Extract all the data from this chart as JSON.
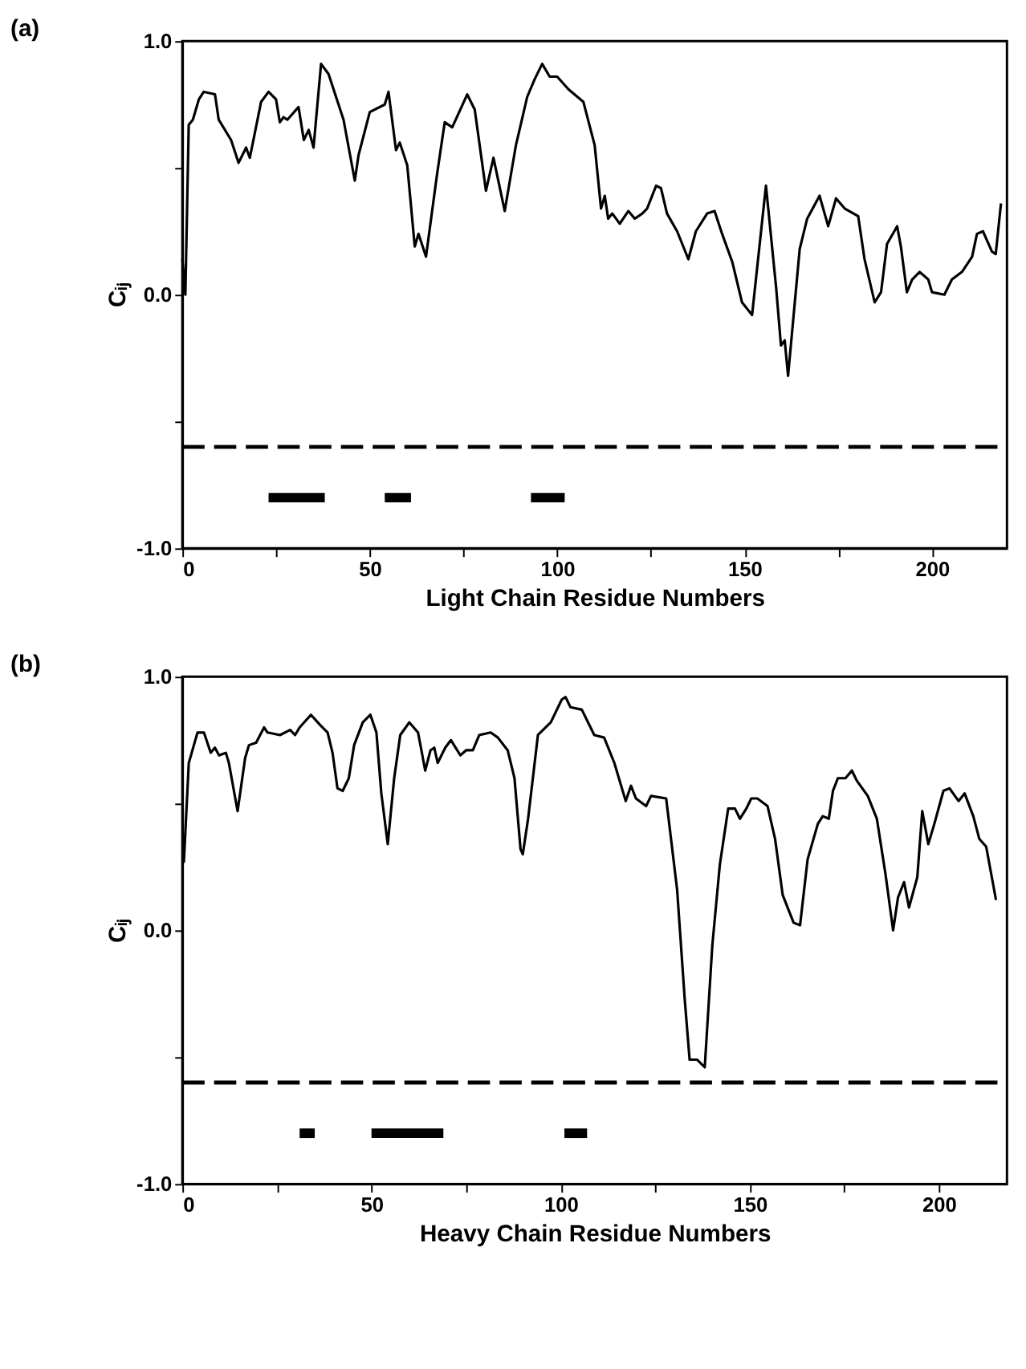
{
  "chart_data": [
    {
      "type": "line",
      "title": "(a)",
      "xlabel": "Light Chain Residue Numbers",
      "ylabel": "Cᵢⱼ",
      "xlim": [
        0,
        220
      ],
      "ylim": [
        -1.0,
        1.0
      ],
      "xticks": [
        0,
        {
          "value": 25,
          "label": null
        },
        50,
        {
          "value": 75,
          "label": null
        },
        100,
        {
          "value": 125,
          "label": null
        },
        150,
        {
          "value": 175,
          "label": null
        },
        200
      ],
      "yticks": [
        {
          "value": -1,
          "label": "-1.0"
        },
        {
          "value": -0.5,
          "label": null
        },
        {
          "value": 0,
          "label": "0.0"
        },
        {
          "value": 0.5,
          "label": null
        },
        {
          "value": 1,
          "label": "1.0"
        }
      ],
      "grid": false,
      "marker": "none",
      "line_style": "solid",
      "ref_lines": [
        {
          "axis": "y",
          "value": -0.6,
          "label": null,
          "color": "#000000",
          "line_style": "dashed"
        }
      ],
      "series": [
        {
          "color": "#000000",
          "x": [
            0,
            0.8,
            1.7,
            2.8,
            4.4,
            5.7,
            8.7,
            9.7,
            13,
            15,
            17,
            18,
            21,
            23,
            25,
            26,
            27,
            28,
            31,
            32.4,
            33.7,
            35,
            37,
            39,
            43,
            46,
            47,
            50,
            54,
            55,
            57,
            58,
            60,
            62,
            63,
            65,
            68,
            70,
            72,
            76,
            78,
            81,
            83,
            86,
            89,
            92,
            94,
            96,
            98,
            100,
            103,
            107,
            110,
            111.7,
            112.7,
            113.6,
            114.7,
            116.7,
            119,
            120.7,
            122.7,
            124,
            126.4,
            127.7,
            129.3,
            132,
            135,
            137,
            140,
            142,
            144,
            146.7,
            149.3,
            152,
            155.7,
            158.4,
            159.7,
            160.7,
            161.6,
            164.7,
            166.7,
            170,
            172.3,
            174.4,
            176.7,
            180.3,
            182,
            184.7,
            186.4,
            188,
            190.7,
            191.7,
            193.3,
            194.7,
            196.7,
            199,
            200,
            203.3,
            205.3,
            208,
            210.7,
            212,
            213.6,
            216,
            217,
            218.4
          ],
          "values": [
            0.14,
            0.0,
            0.67,
            0.69,
            0.77,
            0.8,
            0.79,
            0.69,
            0.61,
            0.52,
            0.58,
            0.54,
            0.76,
            0.8,
            0.77,
            0.68,
            0.7,
            0.69,
            0.74,
            0.61,
            0.65,
            0.58,
            0.91,
            0.87,
            0.69,
            0.45,
            0.55,
            0.72,
            0.75,
            0.8,
            0.57,
            0.6,
            0.51,
            0.19,
            0.24,
            0.15,
            0.48,
            0.68,
            0.66,
            0.79,
            0.73,
            0.41,
            0.54,
            0.33,
            0.59,
            0.78,
            0.85,
            0.91,
            0.86,
            0.86,
            0.81,
            0.76,
            0.59,
            0.34,
            0.39,
            0.3,
            0.32,
            0.28,
            0.33,
            0.3,
            0.32,
            0.34,
            0.43,
            0.42,
            0.32,
            0.25,
            0.14,
            0.25,
            0.32,
            0.33,
            0.24,
            0.13,
            -0.03,
            -0.08,
            0.43,
            0.03,
            -0.2,
            -0.18,
            -0.32,
            0.18,
            0.3,
            0.39,
            0.27,
            0.38,
            0.34,
            0.31,
            0.14,
            -0.03,
            0.01,
            0.2,
            0.27,
            0.19,
            0.01,
            0.06,
            0.09,
            0.06,
            0.01,
            0.0,
            0.06,
            0.09,
            0.15,
            0.24,
            0.25,
            0.17,
            0.16,
            0.36
          ]
        },
        {
          "type": "line",
          "color": "#000000",
          "x": [
            23,
            38,
            null,
            54,
            61,
            null,
            93,
            102
          ],
          "values": [
            -0.8,
            -0.8,
            null,
            -0.8,
            -0.8,
            null,
            -0.8,
            -0.8
          ]
        }
      ]
    },
    {
      "type": "line",
      "title": "(b)",
      "xlabel": "Heavy Chain Residue Numbers",
      "ylabel": "Cᵢⱼ",
      "xlim": [
        0,
        218
      ],
      "ylim": [
        -1.0,
        1.0
      ],
      "xticks": [
        0,
        {
          "value": 25,
          "label": null
        },
        50,
        {
          "value": 75,
          "label": null
        },
        100,
        {
          "value": 125,
          "label": null
        },
        150,
        {
          "value": 175,
          "label": null
        },
        200
      ],
      "yticks": [
        {
          "value": -1,
          "label": "-1.0"
        },
        {
          "value": -0.5,
          "label": null
        },
        {
          "value": 0,
          "label": "0.0"
        },
        {
          "value": 0.5,
          "label": null
        },
        {
          "value": 1,
          "label": "1.0"
        }
      ],
      "grid": false,
      "marker": "none",
      "line_style": "solid",
      "ref_lines": [
        {
          "axis": "y",
          "value": -0.6,
          "label": null,
          "color": "#000000",
          "line_style": "dashed"
        }
      ],
      "series": [
        {
          "color": "#000000",
          "x": [
            0,
            0.4,
            1.7,
            4,
            5.7,
            7.5,
            8.6,
            9.7,
            11.5,
            12.3,
            14.6,
            16.6,
            17.6,
            19.5,
            21.6,
            22.5,
            25.8,
            28.5,
            29.8,
            31,
            34,
            36.4,
            38.4,
            39.7,
            41,
            42.4,
            44,
            45.4,
            47.7,
            49.7,
            51.3,
            52.6,
            54.3,
            56,
            57.6,
            60,
            62.3,
            63.2,
            64.2,
            65.6,
            66.6,
            67.5,
            69.5,
            71,
            73.5,
            75,
            76.8,
            78.5,
            81.5,
            83.4,
            86,
            87.8,
            89.4,
            90,
            91.4,
            94,
            97.4,
            100.3,
            101.3,
            102.6,
            105.6,
            108.9,
            111.5,
            114.2,
            117.2,
            118.6,
            119.9,
            122.6,
            123.9,
            127.9,
            130.8,
            132.8,
            134.1,
            136.1,
            138.1,
            140.1,
            142.1,
            144.3,
            146.1,
            147.4,
            149.1,
            150.4,
            152,
            154.7,
            156.7,
            158.7,
            160,
            161.6,
            163.3,
            165.3,
            168,
            169.3,
            170.9,
            172,
            173.3,
            175.3,
            177,
            178.3,
            181.2,
            183.6,
            185.9,
            187.9,
            189.2,
            190.8,
            192.1,
            194.3,
            195.6,
            197.2,
            198.8,
            201.2,
            202.8,
            205.2,
            206.8,
            209.1,
            210.7,
            212.5,
            215.1
          ],
          "values": [
            0.28,
            0.27,
            0.66,
            0.78,
            0.78,
            0.7,
            0.72,
            0.69,
            0.7,
            0.66,
            0.47,
            0.68,
            0.73,
            0.74,
            0.8,
            0.78,
            0.77,
            0.79,
            0.77,
            0.8,
            0.85,
            0.81,
            0.78,
            0.7,
            0.56,
            0.55,
            0.6,
            0.73,
            0.82,
            0.85,
            0.78,
            0.54,
            0.34,
            0.6,
            0.77,
            0.82,
            0.78,
            0.71,
            0.63,
            0.71,
            0.72,
            0.66,
            0.72,
            0.75,
            0.69,
            0.71,
            0.71,
            0.77,
            0.78,
            0.76,
            0.71,
            0.6,
            0.32,
            0.3,
            0.44,
            0.77,
            0.82,
            0.91,
            0.92,
            0.88,
            0.87,
            0.77,
            0.76,
            0.66,
            0.51,
            0.57,
            0.52,
            0.49,
            0.53,
            0.52,
            0.16,
            -0.27,
            -0.51,
            -0.51,
            -0.54,
            -0.06,
            0.26,
            0.48,
            0.48,
            0.44,
            0.48,
            0.52,
            0.52,
            0.49,
            0.36,
            0.14,
            0.09,
            0.03,
            0.02,
            0.28,
            0.42,
            0.45,
            0.44,
            0.55,
            0.6,
            0.6,
            0.63,
            0.59,
            0.53,
            0.44,
            0.22,
            0.0,
            0.13,
            0.19,
            0.09,
            0.21,
            0.47,
            0.34,
            0.42,
            0.55,
            0.56,
            0.51,
            0.54,
            0.45,
            0.36,
            0.33,
            0.12
          ]
        },
        {
          "type": "line",
          "color": "#000000",
          "x": [
            31,
            35,
            null,
            50,
            69,
            null,
            101,
            107
          ],
          "values": [
            -0.8,
            -0.8,
            null,
            -0.8,
            -0.8,
            null,
            -0.8,
            -0.8
          ]
        }
      ]
    }
  ]
}
